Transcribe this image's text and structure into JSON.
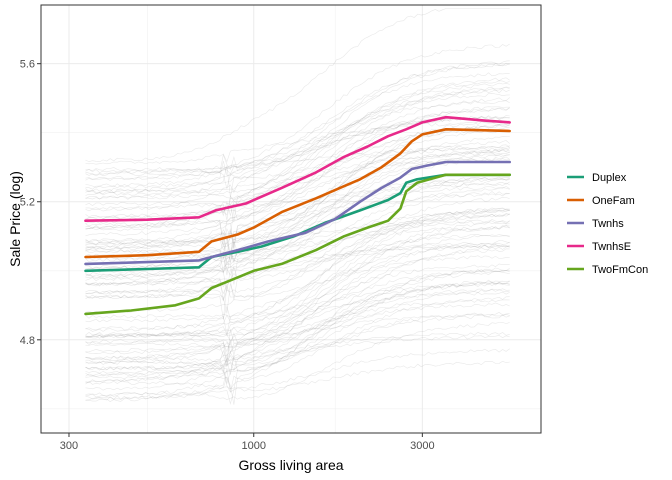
{
  "chart_data": {
    "type": "line",
    "title": "",
    "xlabel": "Gross living area",
    "ylabel": "Sale Price (log)",
    "x_scale": "log10",
    "x_ticks": [
      300,
      1000,
      3000
    ],
    "x_tick_labels": [
      "300",
      "1000",
      "3000"
    ],
    "y_ticks": [
      4.8,
      5.2,
      5.6
    ],
    "y_tick_labels": [
      "4.8",
      "5.2",
      "5.6"
    ],
    "xlim": [
      250,
      6500
    ],
    "ylim": [
      4.53,
      5.77
    ],
    "grid": true,
    "legend_position": "right",
    "background_lines": {
      "description_color": "#808080",
      "count": 100,
      "y_range_low_x": [
        4.62,
        5.32
      ],
      "y_range_high_x": [
        4.58,
        5.76
      ]
    },
    "series": [
      {
        "name": "Duplex",
        "color": "#1B9E77",
        "points": [
          [
            334,
            5.0
          ],
          [
            500,
            5.005
          ],
          [
            700,
            5.01
          ],
          [
            760,
            5.04
          ],
          [
            900,
            5.055
          ],
          [
            1050,
            5.07
          ],
          [
            1300,
            5.1
          ],
          [
            1600,
            5.14
          ],
          [
            2000,
            5.175
          ],
          [
            2400,
            5.205
          ],
          [
            2600,
            5.225
          ],
          [
            2700,
            5.255
          ],
          [
            2900,
            5.265
          ],
          [
            3500,
            5.278
          ],
          [
            5300,
            5.278
          ]
        ]
      },
      {
        "name": "OneFam",
        "color": "#D95F02",
        "points": [
          [
            334,
            5.04
          ],
          [
            500,
            5.045
          ],
          [
            700,
            5.055
          ],
          [
            760,
            5.085
          ],
          [
            900,
            5.105
          ],
          [
            1000,
            5.125
          ],
          [
            1200,
            5.17
          ],
          [
            1500,
            5.21
          ],
          [
            1800,
            5.245
          ],
          [
            2000,
            5.265
          ],
          [
            2300,
            5.3
          ],
          [
            2600,
            5.34
          ],
          [
            2800,
            5.375
          ],
          [
            3000,
            5.395
          ],
          [
            3500,
            5.41
          ],
          [
            5300,
            5.405
          ]
        ]
      },
      {
        "name": "Twnhs",
        "color": "#7570B3",
        "points": [
          [
            334,
            5.02
          ],
          [
            500,
            5.025
          ],
          [
            700,
            5.03
          ],
          [
            760,
            5.04
          ],
          [
            900,
            5.06
          ],
          [
            1100,
            5.085
          ],
          [
            1400,
            5.11
          ],
          [
            1700,
            5.15
          ],
          [
            2000,
            5.2
          ],
          [
            2300,
            5.24
          ],
          [
            2600,
            5.27
          ],
          [
            2800,
            5.295
          ],
          [
            3100,
            5.305
          ],
          [
            3500,
            5.315
          ],
          [
            5300,
            5.315
          ]
        ]
      },
      {
        "name": "TwnhsE",
        "color": "#E7298A",
        "points": [
          [
            334,
            5.145
          ],
          [
            500,
            5.148
          ],
          [
            700,
            5.155
          ],
          [
            780,
            5.175
          ],
          [
            950,
            5.195
          ],
          [
            1200,
            5.24
          ],
          [
            1500,
            5.285
          ],
          [
            1800,
            5.33
          ],
          [
            2100,
            5.36
          ],
          [
            2400,
            5.39
          ],
          [
            2700,
            5.41
          ],
          [
            3000,
            5.43
          ],
          [
            3500,
            5.445
          ],
          [
            4500,
            5.435
          ],
          [
            5300,
            5.43
          ]
        ]
      },
      {
        "name": "TwoFmCon",
        "color": "#66A61E",
        "points": [
          [
            334,
            4.875
          ],
          [
            450,
            4.885
          ],
          [
            600,
            4.9
          ],
          [
            700,
            4.92
          ],
          [
            760,
            4.95
          ],
          [
            850,
            4.97
          ],
          [
            1000,
            5.0
          ],
          [
            1200,
            5.02
          ],
          [
            1500,
            5.06
          ],
          [
            1800,
            5.1
          ],
          [
            2100,
            5.125
          ],
          [
            2400,
            5.145
          ],
          [
            2600,
            5.18
          ],
          [
            2700,
            5.23
          ],
          [
            2900,
            5.255
          ],
          [
            3500,
            5.278
          ],
          [
            5300,
            5.278
          ]
        ]
      }
    ]
  }
}
